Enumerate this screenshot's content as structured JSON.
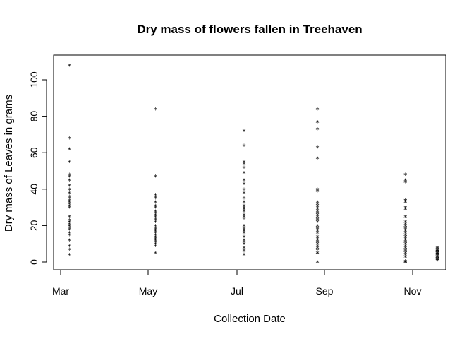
{
  "chart_data": {
    "type": "scatter",
    "title": "Dry mass of flowers fallen in Treehaven",
    "xlabel": "Collection Date",
    "ylabel": "Dry mass of Leaves in grams",
    "marker": "*",
    "marker_color": "#000000",
    "x_ticks": [
      "Mar",
      "May",
      "Jul",
      "Sep",
      "Nov"
    ],
    "y_ticks": [
      "0",
      "20",
      "40",
      "60",
      "80",
      "100"
    ],
    "ylim": [
      -4,
      112
    ],
    "groups": [
      {
        "date": "2011-03-07",
        "values": [
          108,
          68,
          62,
          55,
          48,
          47,
          45,
          42,
          40,
          40,
          38,
          36,
          35,
          34,
          33,
          32,
          31,
          30,
          25,
          23,
          22,
          22,
          21,
          20,
          20,
          19,
          18,
          16,
          15,
          12,
          9,
          7,
          4
        ]
      },
      {
        "date": "2011-05-06",
        "values": [
          84,
          47,
          37,
          36,
          35,
          33,
          31,
          30,
          28,
          27,
          26,
          25,
          24,
          23,
          22,
          20,
          19,
          18,
          17,
          16,
          15,
          14,
          13,
          12,
          11,
          10,
          9,
          5
        ]
      },
      {
        "date": "2011-07-06",
        "values": [
          72,
          64,
          55,
          54,
          52,
          49,
          45,
          43,
          40,
          38,
          35,
          33,
          31,
          30,
          29,
          28,
          26,
          25,
          24,
          20,
          19,
          18,
          17,
          16,
          14,
          12,
          11,
          10,
          8,
          7,
          6,
          4
        ]
      },
      {
        "date": "2011-08-27",
        "values": [
          84,
          77,
          77,
          73,
          63,
          57,
          40,
          39,
          33,
          32,
          31,
          30,
          29,
          28,
          27,
          26,
          25,
          24,
          23,
          22,
          20,
          19,
          18,
          17,
          16,
          14,
          13,
          12,
          11,
          10,
          9,
          8,
          7,
          5,
          5,
          0
        ]
      },
      {
        "date": "2011-10-27",
        "values": [
          48,
          45,
          44,
          34,
          34,
          33,
          30,
          29,
          25,
          22,
          21,
          20,
          19,
          18,
          17,
          16,
          15,
          14,
          13,
          12,
          11,
          10,
          9,
          8,
          7,
          6,
          5,
          4,
          3,
          0.5,
          0.2,
          0
        ]
      },
      {
        "date": "2011-11-18",
        "values": [
          8,
          7.5,
          7,
          6.5,
          6,
          6,
          5.5,
          5,
          5,
          4.5,
          4,
          4,
          3.5,
          3,
          3,
          2.5,
          2,
          2,
          1.5,
          1
        ]
      }
    ]
  }
}
